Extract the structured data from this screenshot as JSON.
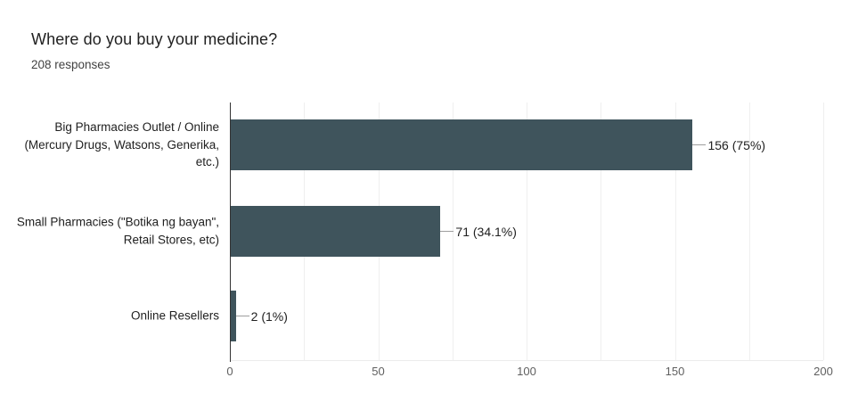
{
  "chart_data": {
    "type": "bar",
    "orientation": "horizontal",
    "title": "Where do you buy your medicine?",
    "subtitle": "208 responses",
    "categories": [
      "Big Pharmacies Outlet / Online (Mercury Drugs, Watsons, Generika, etc.)",
      "Small Pharmacies (\"Botika ng bayan\", Retail Stores, etc)",
      "Online Resellers"
    ],
    "values": [
      156,
      71,
      2
    ],
    "value_labels": [
      "156 (75%)",
      "71 (34.1%)",
      "2 (1%)"
    ],
    "percentages": [
      75,
      34.1,
      1
    ],
    "total_responses": 208,
    "xlim": [
      0,
      200
    ],
    "xticks": [
      0,
      50,
      100,
      150,
      200
    ],
    "grid_interval": 25,
    "bar_color": "#3f545c",
    "gridline_color": "#efefef",
    "axis_line_color": "#333333",
    "connector_color": "#9e9e9e",
    "legend_position": "none",
    "xlabel": "",
    "ylabel": ""
  }
}
